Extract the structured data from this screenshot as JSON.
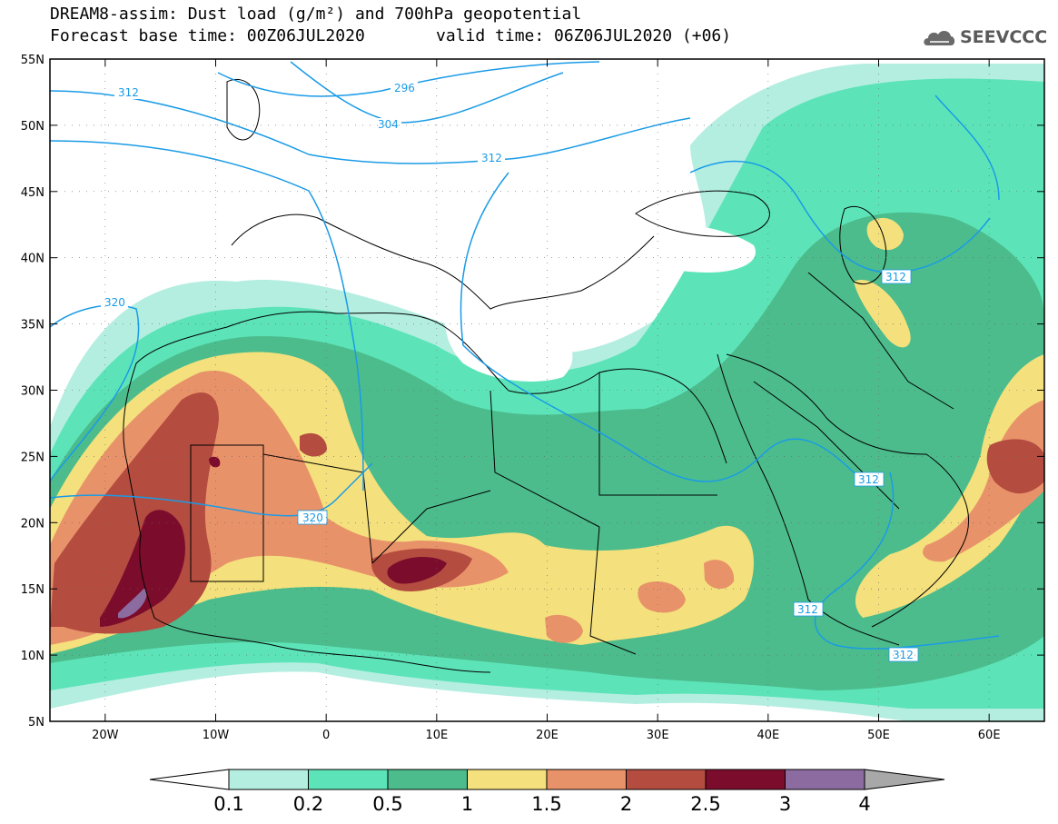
{
  "header": {
    "title": "DREAM8-assim: Dust load (g/m²) and 700hPa geopotential",
    "forecast_base": "Forecast base time: 00Z06JUL2020",
    "valid_time": "valid time: 06Z06JUL2020 (+06)"
  },
  "logo": {
    "text": "SEEVCCC",
    "icon": "cloud-logo-icon"
  },
  "map": {
    "lat_labels": [
      "55N",
      "50N",
      "45N",
      "40N",
      "35N",
      "30N",
      "25N",
      "20N",
      "15N",
      "10N",
      "5N"
    ],
    "lon_labels": [
      "20W",
      "10W",
      "0",
      "10E",
      "20E",
      "30E",
      "40E",
      "50E",
      "60E"
    ],
    "contour_labels": [
      "312",
      "296",
      "304",
      "312",
      "320",
      "320",
      "312",
      "312",
      "312",
      "312"
    ]
  },
  "legend": {
    "labels": [
      "0.1",
      "0.2",
      "0.5",
      "1",
      "1.5",
      "2",
      "2.5",
      "3",
      "4"
    ],
    "colors": [
      "#ffffff",
      "#b4eee0",
      "#5ce4b8",
      "#4cbc8c",
      "#f4e07c",
      "#e8926a",
      "#b44c40",
      "#7c0c2c",
      "#8c6ca0",
      "#a8a8a8"
    ]
  }
}
